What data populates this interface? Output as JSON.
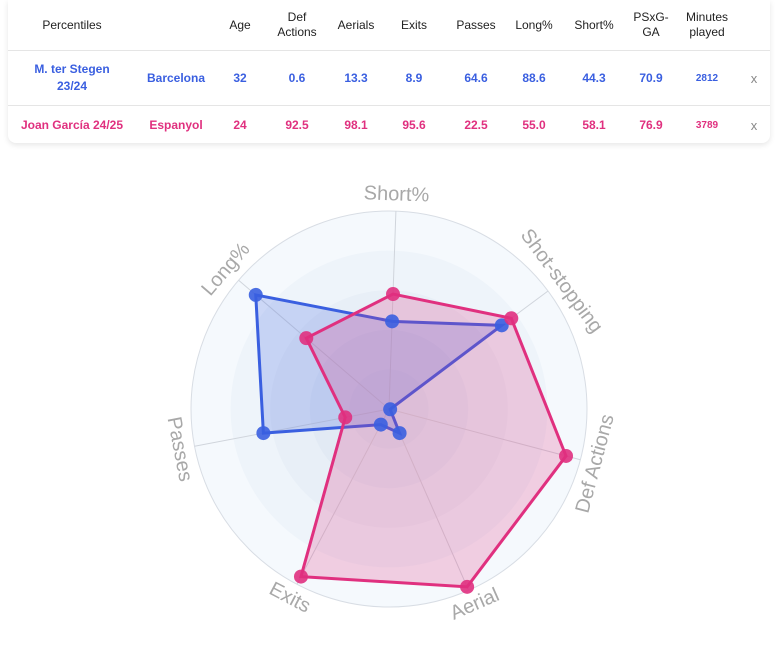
{
  "table": {
    "headers": [
      "Percentiles",
      "",
      "Age",
      "Def\nActions",
      "Aerials",
      "Exits",
      "Passes",
      "Long%",
      "Short%",
      "PSxG-\nGA",
      "Minutes\nplayed",
      ""
    ],
    "rows": [
      {
        "player": "M. ter Stegen\n23/24",
        "team": "Barcelona",
        "age": "32",
        "def_actions": "0.6",
        "aerials": "13.3",
        "exits": "8.9",
        "passes": "64.6",
        "long_pct": "88.6",
        "short_pct": "44.3",
        "psxg_ga": "70.9",
        "minutes": "2812",
        "remove": "x"
      },
      {
        "player": "Joan García 24/25",
        "team": "Espanyol",
        "age": "24",
        "def_actions": "92.5",
        "aerials": "98.1",
        "exits": "95.6",
        "passes": "22.5",
        "long_pct": "55.0",
        "short_pct": "58.1",
        "psxg_ga": "76.9",
        "minutes": "3789",
        "remove": "x"
      }
    ]
  },
  "chart_data": {
    "type": "radar",
    "axes": [
      "Short%",
      "Shot-stopping",
      "Def Actions",
      "Aerial",
      "Exits",
      "Passes",
      "Long%"
    ],
    "range": [
      0,
      100
    ],
    "series": [
      {
        "name": "M. ter Stegen 23/24",
        "color": "#3a5fe0",
        "values": [
          44.3,
          70.9,
          0.6,
          13.3,
          8.9,
          64.6,
          88.6
        ]
      },
      {
        "name": "Joan García 24/25",
        "color": "#e0307f",
        "values": [
          58.1,
          76.9,
          92.5,
          98.1,
          95.6,
          22.5,
          55.0
        ]
      }
    ],
    "grid": true
  }
}
